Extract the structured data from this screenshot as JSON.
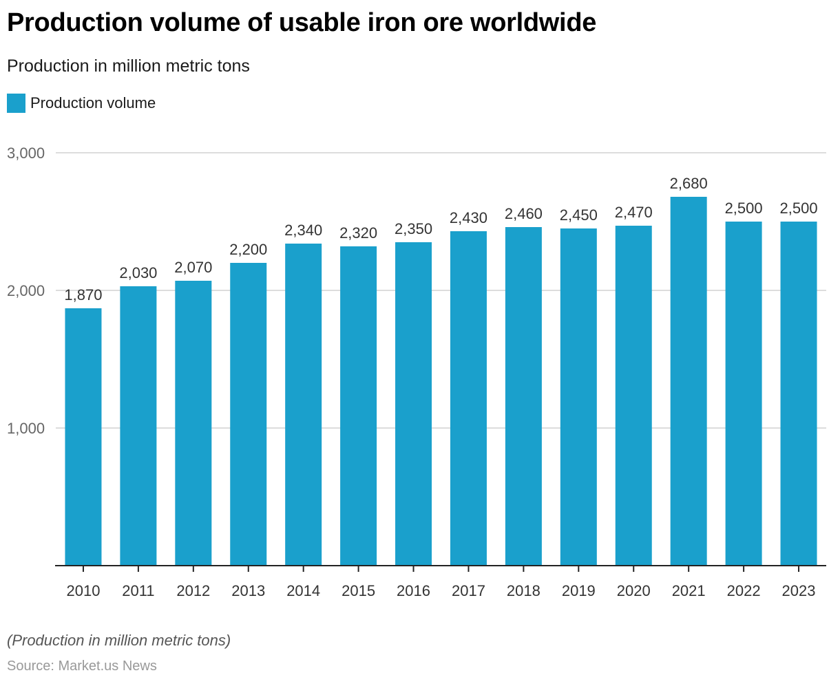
{
  "header": {
    "title": "Production volume of usable iron ore worldwide",
    "subtitle": "Production in million metric tons"
  },
  "legend": {
    "items": [
      {
        "label": "Production volume",
        "color": "#1aa0cc"
      }
    ]
  },
  "footer": {
    "note": "(Production in million metric tons)",
    "source": "Source: Market.us News"
  },
  "chart_data": {
    "type": "bar",
    "title": "Production volume of usable iron ore worldwide",
    "subtitle": "Production in million metric tons",
    "xlabel": "",
    "ylabel": "",
    "categories": [
      "2010",
      "2011",
      "2012",
      "2013",
      "2014",
      "2015",
      "2016",
      "2017",
      "2018",
      "2019",
      "2020",
      "2021",
      "2022",
      "2023"
    ],
    "series": [
      {
        "name": "Production volume",
        "color": "#1aa0cc",
        "values": [
          1870,
          2030,
          2070,
          2200,
          2340,
          2320,
          2350,
          2430,
          2460,
          2450,
          2470,
          2680,
          2500,
          2500
        ]
      }
    ],
    "data_labels": [
      "1,870",
      "2,030",
      "2,070",
      "2,200",
      "2,340",
      "2,320",
      "2,350",
      "2,430",
      "2,460",
      "2,450",
      "2,470",
      "2,680",
      "2,500",
      "2,500"
    ],
    "ylim": [
      0,
      3000
    ],
    "yticks": [
      1000,
      2000,
      3000
    ],
    "ytick_labels": [
      "1,000",
      "2,000",
      "3,000"
    ],
    "grid": true,
    "legend_position": "top-left"
  }
}
